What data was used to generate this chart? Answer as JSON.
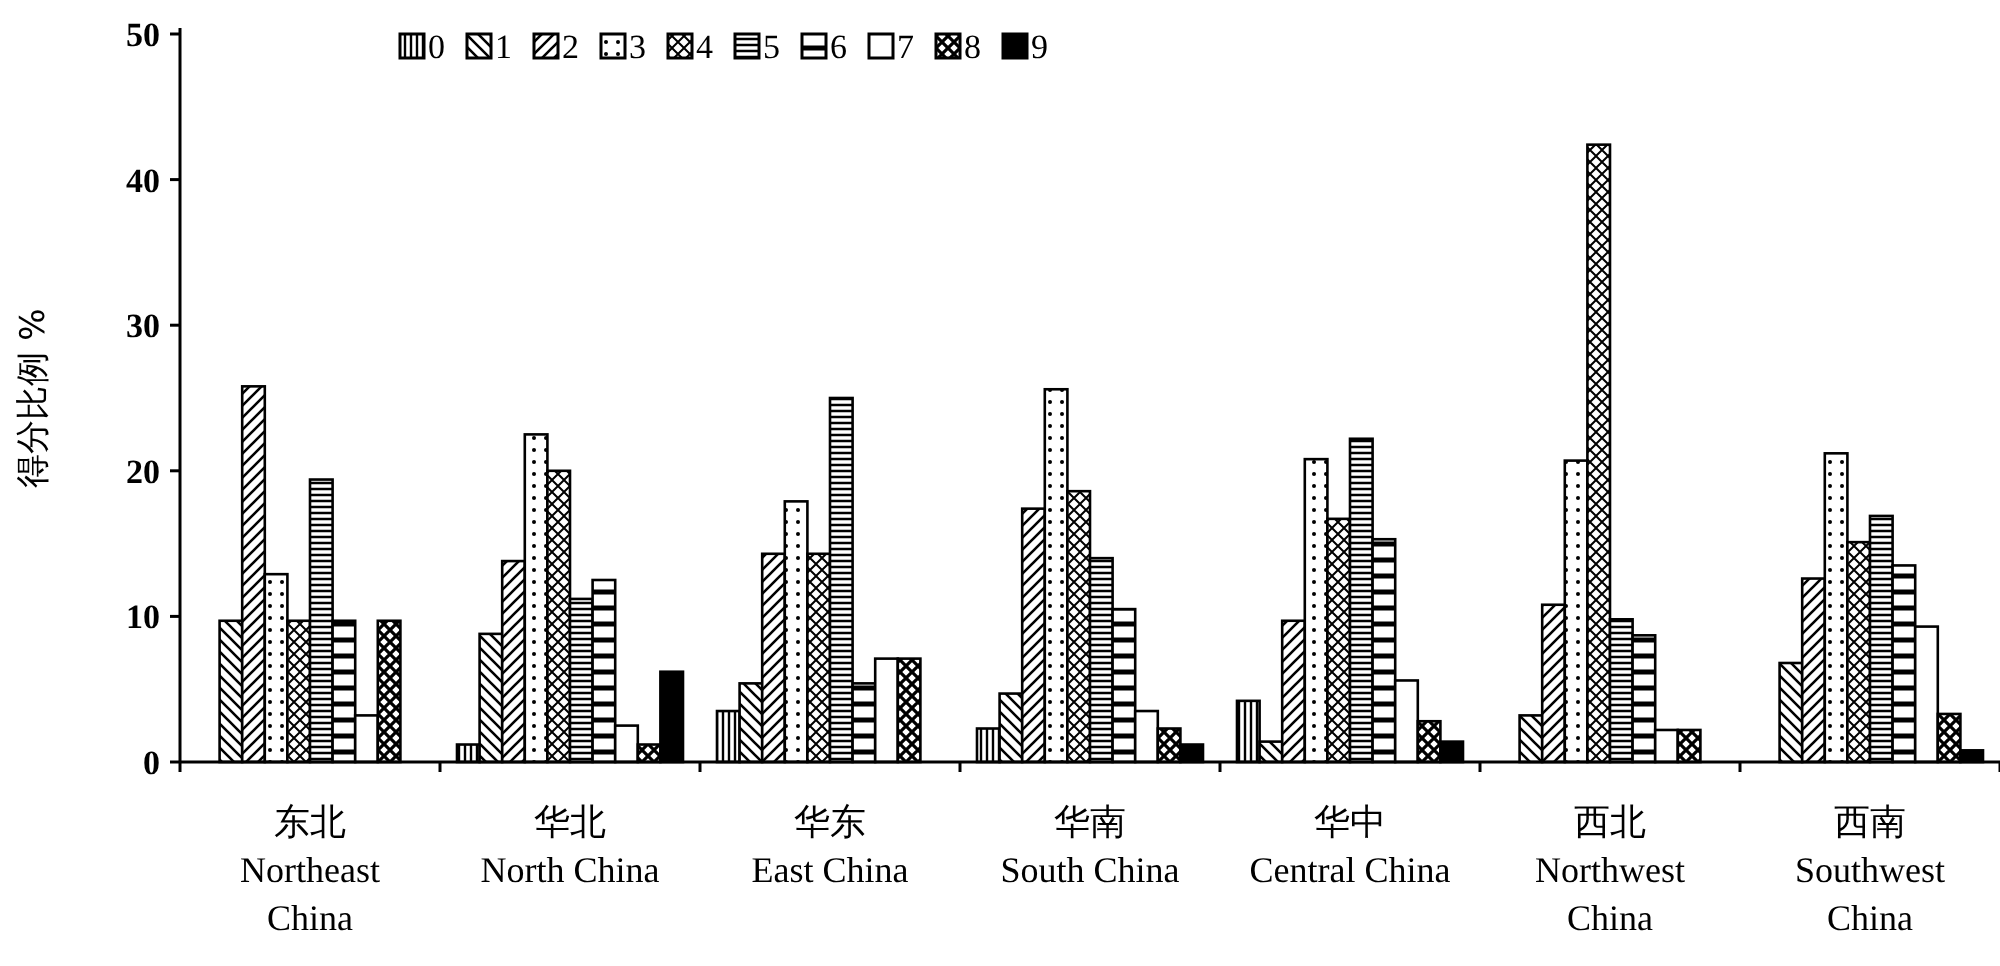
{
  "chart_data": {
    "type": "bar",
    "ylabel": "得分比例 %",
    "categories": [
      "东北\nNortheast\nChina",
      "华北\nNorth China",
      "华东\nEast China",
      "华南\nSouth China",
      "华中\nCentral China",
      "西北\nNorthwest\nChina",
      "西南\nSouthwest\nChina"
    ],
    "ylim": [
      0,
      50
    ],
    "yticks": [
      0,
      10,
      20,
      30,
      40,
      50
    ],
    "grid": false,
    "legend": "top",
    "series": [
      {
        "name": "0",
        "color": "#000000",
        "values": [
          0,
          1.2,
          3.5,
          2.3,
          4.2,
          0,
          0
        ]
      },
      {
        "name": "1",
        "color": "#000000",
        "values": [
          9.7,
          8.8,
          5.4,
          4.7,
          1.4,
          3.2,
          6.8
        ]
      },
      {
        "name": "2",
        "color": "#000000",
        "values": [
          25.8,
          13.8,
          14.3,
          17.4,
          9.7,
          10.8,
          12.6
        ]
      },
      {
        "name": "3",
        "color": "#000000",
        "values": [
          12.9,
          22.5,
          17.9,
          25.6,
          20.8,
          20.7,
          21.2
        ]
      },
      {
        "name": "4",
        "color": "#000000",
        "values": [
          9.7,
          20.0,
          14.3,
          18.6,
          16.7,
          42.4,
          15.1
        ]
      },
      {
        "name": "5",
        "color": "#000000",
        "values": [
          19.4,
          11.2,
          25.0,
          14.0,
          22.2,
          9.8,
          16.9
        ]
      },
      {
        "name": "6",
        "color": "#000000",
        "values": [
          9.7,
          12.5,
          5.4,
          10.5,
          15.3,
          8.7,
          13.5
        ]
      },
      {
        "name": "7",
        "color": "#ffffff",
        "values": [
          3.2,
          2.5,
          7.1,
          3.5,
          5.6,
          2.2,
          9.3
        ]
      },
      {
        "name": "8",
        "color": "#000000",
        "values": [
          9.7,
          1.2,
          7.1,
          2.3,
          2.8,
          2.2,
          3.3
        ]
      },
      {
        "name": "9",
        "color": "#000000",
        "values": [
          0,
          6.2,
          0,
          1.2,
          1.4,
          0,
          0.8
        ]
      }
    ]
  }
}
